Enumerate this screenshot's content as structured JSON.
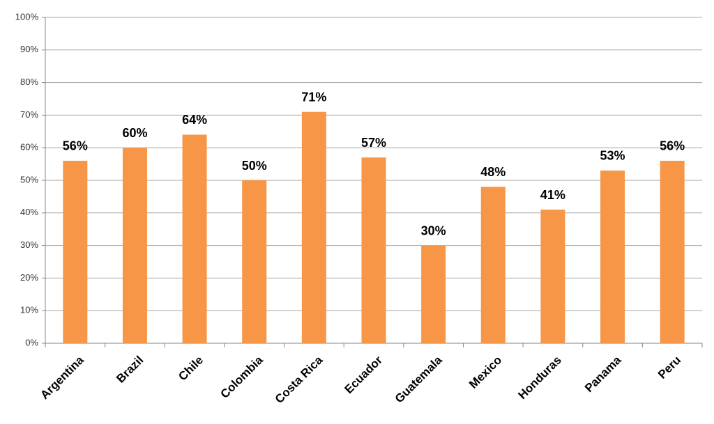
{
  "chart_data": {
    "type": "bar",
    "categories": [
      "Argentina",
      "Brazil",
      "Chile",
      "Colombia",
      "Costa Rica",
      "Ecuador",
      "Guatemala",
      "Mexico",
      "Honduras",
      "Panama",
      "Peru"
    ],
    "values": [
      56,
      60,
      64,
      50,
      71,
      57,
      30,
      48,
      41,
      53,
      56
    ],
    "value_labels": [
      "56%",
      "60%",
      "64%",
      "50%",
      "71%",
      "57%",
      "30%",
      "48%",
      "41%",
      "53%",
      "56%"
    ],
    "color": "#f79646",
    "ylim": [
      0,
      100
    ],
    "yticks": [
      {
        "value": 0,
        "label": "0%"
      },
      {
        "value": 10,
        "label": "10%"
      },
      {
        "value": 20,
        "label": "20%"
      },
      {
        "value": 30,
        "label": "30%"
      },
      {
        "value": 40,
        "label": "40%"
      },
      {
        "value": 50,
        "label": "50%"
      },
      {
        "value": 60,
        "label": "60%"
      },
      {
        "value": 70,
        "label": "70%"
      },
      {
        "value": 80,
        "label": "80%"
      },
      {
        "value": 90,
        "label": "90%"
      },
      {
        "value": 100,
        "label": "100%"
      }
    ],
    "grid": true
  }
}
